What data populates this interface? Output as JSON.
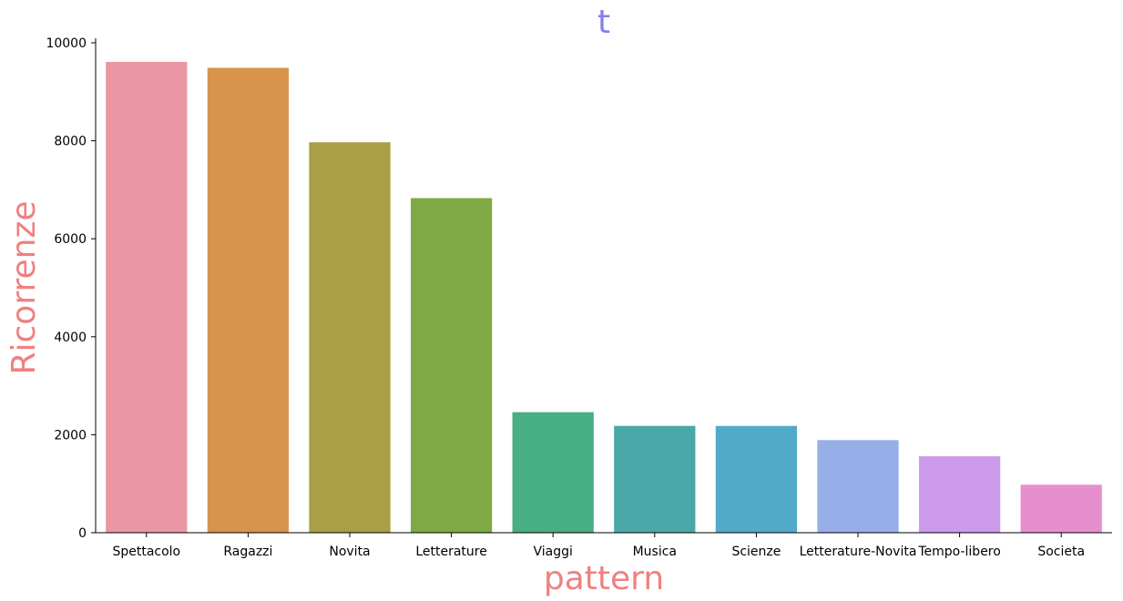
{
  "chart_data": {
    "type": "bar",
    "title": "t",
    "xlabel": "pattern",
    "ylabel": "Ricorrenze",
    "categories": [
      "Spettacolo",
      "Ragazzi",
      "Novita",
      "Letterature",
      "Viaggi",
      "Musica",
      "Scienze",
      "Letterature-Novita",
      "Tempo-libero",
      "Societa"
    ],
    "values": [
      9610,
      9490,
      7970,
      6830,
      2460,
      2180,
      2180,
      1890,
      1560,
      980
    ],
    "colors": [
      "#ea96a3",
      "#d8944c",
      "#aa9e46",
      "#7fa944",
      "#48ae83",
      "#4aa9a8",
      "#51abc8",
      "#97aee8",
      "#cc9aea",
      "#e78fce"
    ],
    "ylim": [
      0,
      10000
    ],
    "yticks": [
      0,
      2000,
      4000,
      6000,
      8000,
      10000
    ],
    "grid": false,
    "title_color": "#8080f0",
    "label_color": "#f08080"
  }
}
